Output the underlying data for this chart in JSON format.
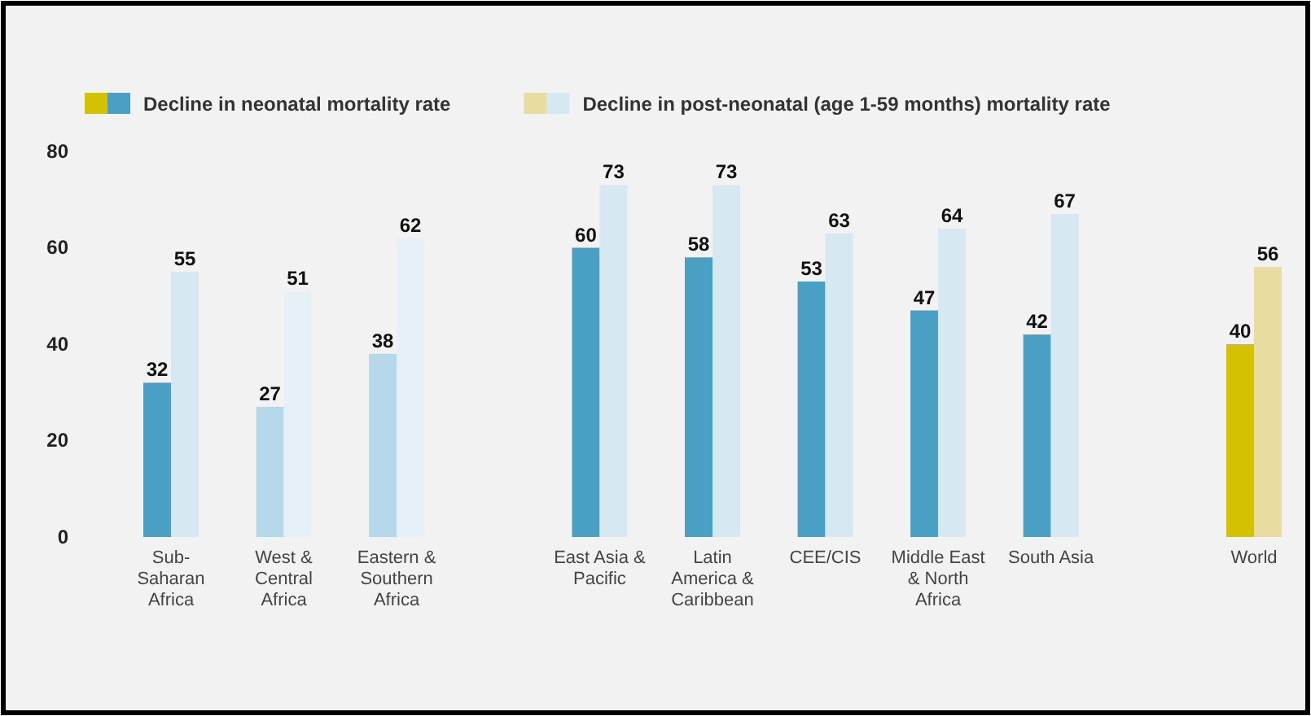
{
  "chart_data": {
    "type": "bar",
    "categories": [
      "Sub-Saharan Africa",
      "West & Central Africa",
      "Eastern & Southern Africa",
      "East Asia & Pacific",
      "Latin America & Caribbean",
      "CEE/CIS",
      "Middle East & North Africa",
      "South Asia",
      "World"
    ],
    "series": [
      {
        "name": "Decline in neonatal mortality rate",
        "color": "#4a9fc4",
        "colors": [
          "#4a9fc4",
          "#b5d9ea",
          "#b5d9ea",
          "#4a9fc4",
          "#4a9fc4",
          "#4a9fc4",
          "#4a9fc4",
          "#4a9fc4",
          "#d4c100"
        ],
        "values": [
          32,
          27,
          38,
          60,
          58,
          53,
          47,
          42,
          40
        ]
      },
      {
        "name": "Decline in post-neonatal (age 1-59 months) mortality rate",
        "color": "#d6e8f2",
        "colors": [
          "#d6e8f2",
          "#e6f0f7",
          "#e6f0f7",
          "#d6e8f2",
          "#d6e8f2",
          "#d6e8f2",
          "#d6e8f2",
          "#d6e8f2",
          "#e8dca0"
        ],
        "values": [
          55,
          51,
          62,
          73,
          73,
          63,
          64,
          67,
          56
        ]
      }
    ],
    "ylim": [
      0,
      80
    ],
    "yticks": [
      0,
      20,
      40,
      60,
      80
    ],
    "grid": false,
    "legend": "top",
    "data_labels": true
  }
}
